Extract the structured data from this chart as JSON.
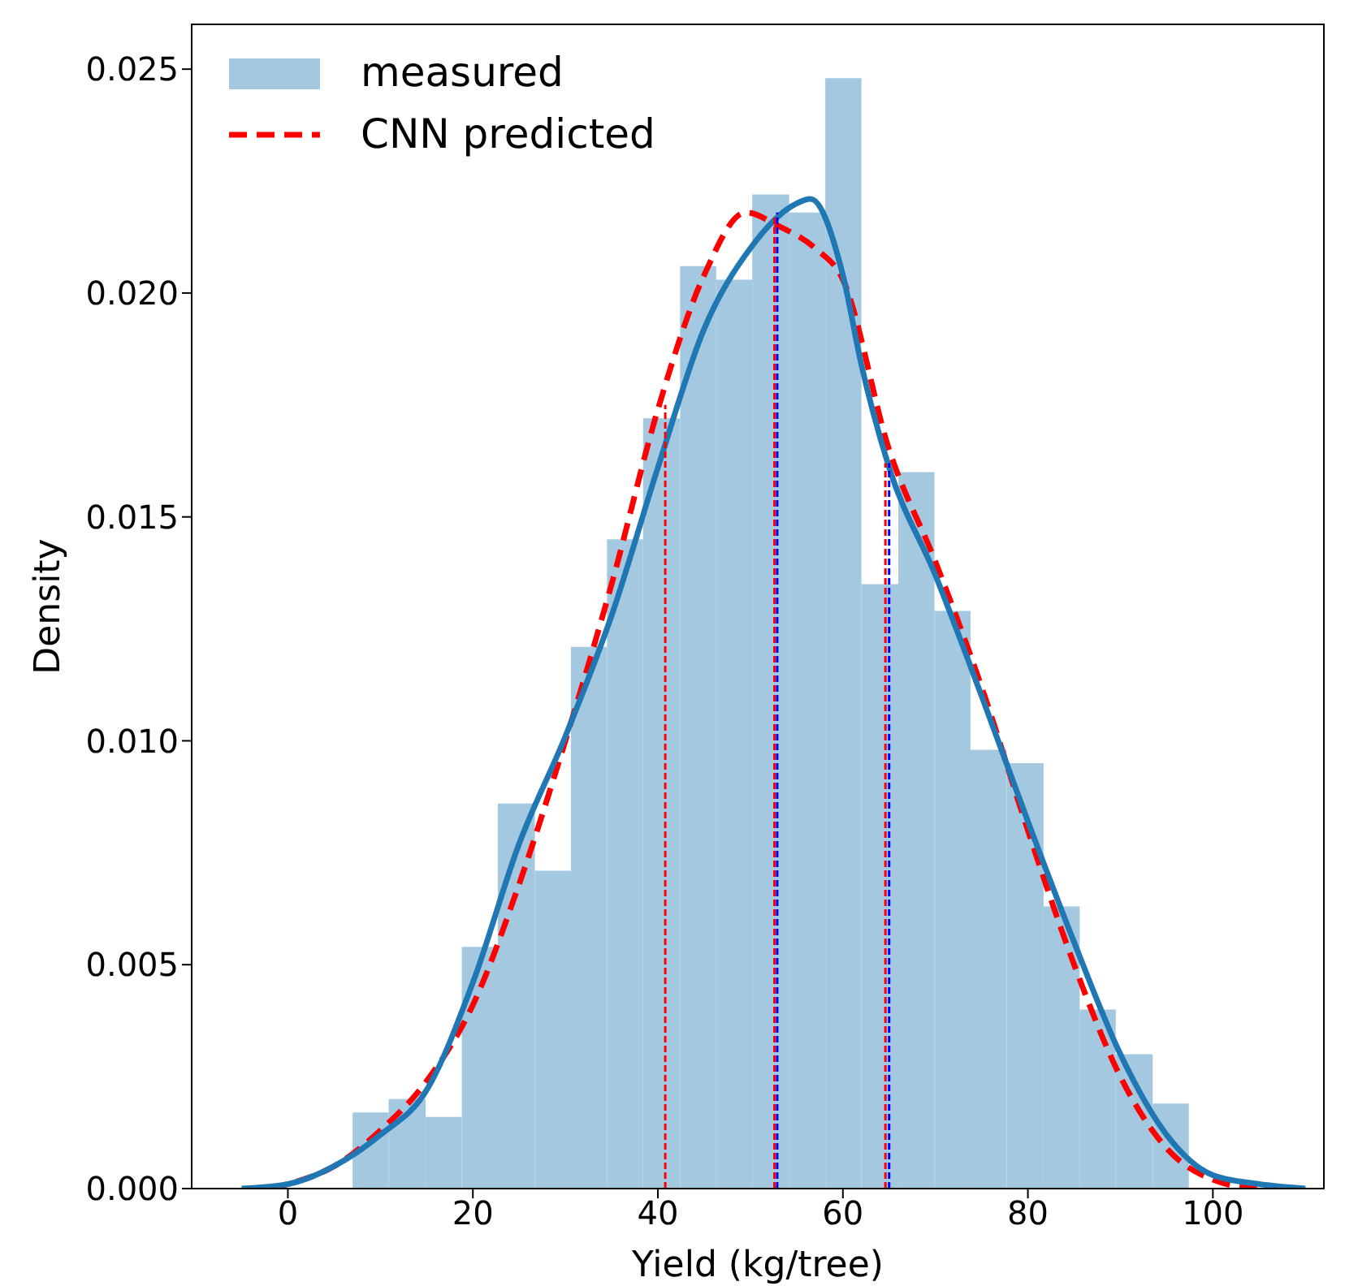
{
  "chart_data": {
    "type": "histogram",
    "xlabel": "Yield (kg/tree)",
    "ylabel": "Density",
    "xlim": [
      -10.4,
      112
    ],
    "xticks": [
      0,
      20,
      40,
      60,
      80,
      100
    ],
    "ylim": [
      0,
      0.026
    ],
    "yticks": [
      {
        "value": 0,
        "label": "0.000"
      },
      {
        "value": 0.005,
        "label": "0.005"
      },
      {
        "value": 0.01,
        "label": "0.010"
      },
      {
        "value": 0.015,
        "label": "0.015"
      },
      {
        "value": 0.02,
        "label": "0.020"
      },
      {
        "value": 0.025,
        "label": "0.025"
      }
    ],
    "grid": false,
    "legend": "top left",
    "marker": "none",
    "series": [
      {
        "name": "measured",
        "color": "#a5c8e1",
        "bins": [
          7.0,
          10.9,
          14.9,
          18.8,
          22.7,
          26.7,
          30.6,
          34.5,
          38.4,
          42.4,
          46.3,
          50.2,
          54.2,
          58.1,
          62.0,
          66.0,
          69.9,
          73.8,
          77.7,
          81.7,
          85.6,
          89.5,
          93.5,
          97.4
        ],
        "values": [
          0.0017,
          0.002,
          0.0016,
          0.0054,
          0.0086,
          0.0071,
          0.0121,
          0.0145,
          0.0172,
          0.0206,
          0.0203,
          0.0222,
          0.0218,
          0.0248,
          0.0135,
          0.016,
          0.0129,
          0.0098,
          0.0095,
          0.0063,
          0.004,
          0.003,
          0.0019
        ]
      },
      {
        "type": "line",
        "name": "CNN predicted",
        "color": "#ff0000",
        "line_style": "dashed",
        "x": [
          -2,
          0,
          5,
          10,
          15,
          20,
          25,
          30,
          35,
          40,
          45,
          49.5,
          53,
          57,
          60,
          65,
          70,
          75,
          80,
          85,
          90,
          95,
          100,
          105,
          109
        ],
        "values": [
          0,
          0.0001,
          0.0005,
          0.0013,
          0.0024,
          0.0041,
          0.0068,
          0.01,
          0.0135,
          0.0174,
          0.0204,
          0.0218,
          0.0215,
          0.021,
          0.0203,
          0.0165,
          0.014,
          0.0112,
          0.008,
          0.005,
          0.0025,
          0.0009,
          0.0002,
          0,
          0
        ]
      },
      {
        "type": "line",
        "color": "#1f77b4",
        "line_style": "solid",
        "x": [
          -5,
          0,
          5,
          10,
          15,
          20,
          25,
          30,
          35,
          40,
          45,
          50,
          55,
          56.5,
          60,
          62,
          65,
          70,
          75,
          80,
          85,
          90,
          95,
          100,
          105,
          110
        ],
        "values": [
          0,
          0.0001,
          0.0005,
          0.0012,
          0.0022,
          0.0046,
          0.0077,
          0.0101,
          0.0128,
          0.0161,
          0.0192,
          0.021,
          0.022,
          0.0221,
          0.0204,
          0.0184,
          0.0161,
          0.0137,
          0.011,
          0.0082,
          0.0055,
          0.003,
          0.0012,
          0.0003,
          0.0001,
          0
        ]
      },
      {
        "type": "line",
        "color": "#ff0000",
        "line_style": "dotted",
        "x": [
          40.8,
          40.8
        ],
        "values": [
          0,
          0.0175
        ]
      },
      {
        "type": "line",
        "color": "#ff0000",
        "line_style": "dotted",
        "x": [
          52.6,
          52.6
        ],
        "values": [
          0,
          0.0217
        ]
      },
      {
        "type": "line",
        "color": "#0000ff",
        "line_style": "dotted",
        "x": [
          52.9,
          52.9
        ],
        "values": [
          0,
          0.0218
        ]
      },
      {
        "type": "line",
        "color": "#ff0000",
        "line_style": "dotted",
        "x": [
          64.6,
          64.6
        ],
        "values": [
          0,
          0.0162
        ]
      },
      {
        "type": "line",
        "color": "#0000ff",
        "line_style": "dotted",
        "x": [
          65.0,
          65.0
        ],
        "values": [
          0,
          0.0162
        ]
      }
    ]
  }
}
